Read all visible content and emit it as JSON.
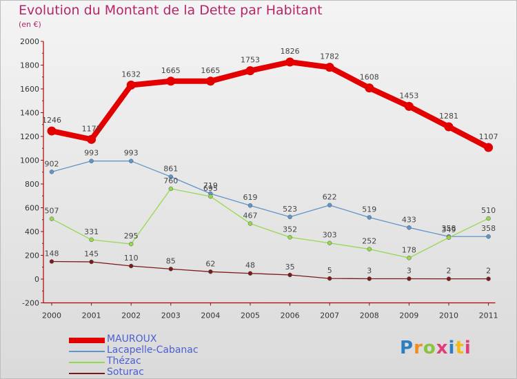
{
  "title": "Evolution du Montant de la Dette par Habitant",
  "subtitle": "(en €)",
  "brand": {
    "name": "Proxiti",
    "colors": [
      "#2e7fc1",
      "#f28e1c",
      "#8ac43f",
      "#e23d7b",
      "#2e7fc1",
      "#f4b914",
      "#e23d7b"
    ]
  },
  "chart_data": {
    "type": "line",
    "title": "Evolution du Montant de la Dette par Habitant",
    "ylabel": "(en €)",
    "xlabel": "",
    "x": [
      "2000",
      "2001",
      "2002",
      "2003",
      "2004",
      "2005",
      "2006",
      "2007",
      "2008",
      "2009",
      "2010",
      "2011"
    ],
    "ylim": [
      -200,
      2000
    ],
    "yticks": [
      "-200",
      "0",
      "200",
      "400",
      "600",
      "800",
      "1000",
      "1200",
      "1400",
      "1600",
      "1800",
      "2000"
    ],
    "grid": false,
    "legend_position": "bottom-left",
    "series": [
      {
        "name": "MAUROUX",
        "color": "#e30000",
        "thick": true,
        "values": [
          1246,
          1175,
          1632,
          1665,
          1665,
          1753,
          1826,
          1782,
          1608,
          1453,
          1281,
          1107
        ]
      },
      {
        "name": "Lacapelle-Cabanac",
        "color": "#5f95c9",
        "thick": false,
        "values": [
          902,
          993,
          993,
          861,
          719,
          619,
          523,
          622,
          519,
          433,
          358,
          358
        ]
      },
      {
        "name": "Thézac",
        "color": "#94d84e",
        "thick": false,
        "values": [
          507,
          331,
          295,
          760,
          695,
          467,
          352,
          303,
          252,
          178,
          349,
          510
        ]
      },
      {
        "name": "Soturac",
        "color": "#7b1a1a",
        "thick": false,
        "values": [
          148,
          145,
          110,
          85,
          62,
          48,
          35,
          5,
          3,
          3,
          2,
          2
        ]
      }
    ]
  }
}
